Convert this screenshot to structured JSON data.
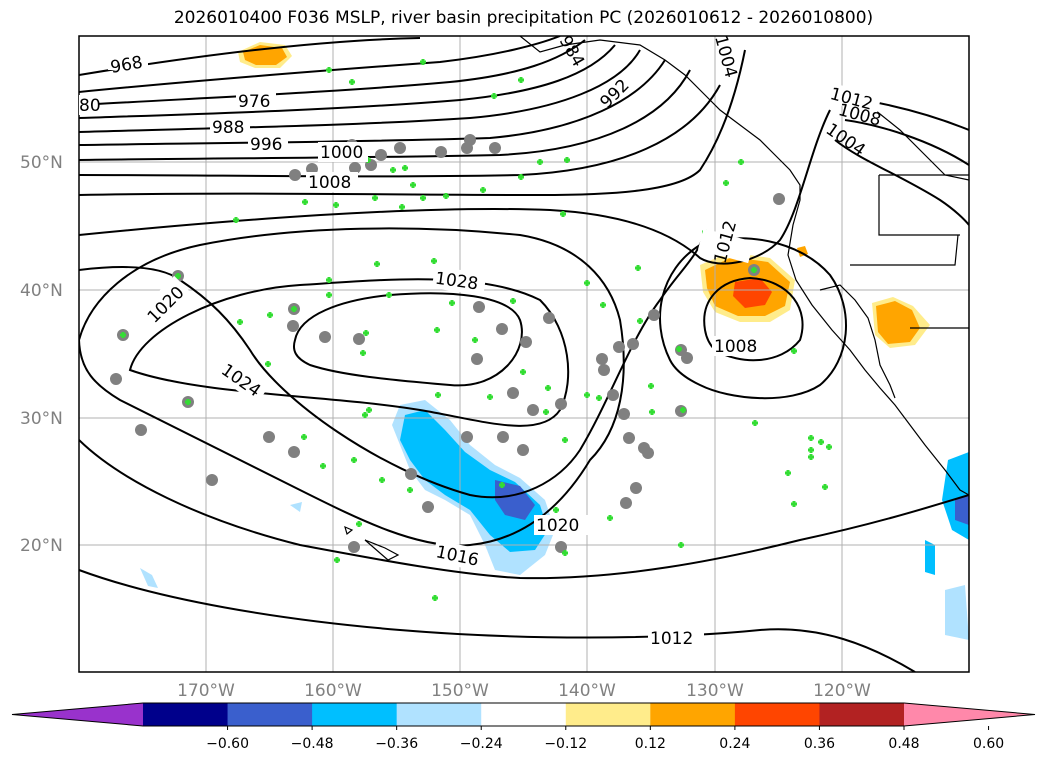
{
  "title": "2026010400 F036 MSLP, river basin precipitation PC (2026010612 - 2026010800)",
  "lat_labels": [
    "50°N",
    "40°N",
    "30°N",
    "20°N"
  ],
  "lon_labels": [
    "170°W",
    "160°W",
    "150°W",
    "140°W",
    "130°W",
    "120°W"
  ],
  "isobar_labels": [
    "968",
    "976",
    "988",
    "996",
    "1000",
    "1008",
    "984",
    "992",
    "1004",
    "1012",
    "1008",
    "1004",
    "1020",
    "1024",
    "1028",
    "1012",
    "1008",
    "1020",
    "1016",
    "1012",
    "80"
  ],
  "colorbar": {
    "ticks": [
      "−0.60",
      "−0.48",
      "−0.36",
      "−0.24",
      "−0.12",
      "0.12",
      "0.24",
      "0.36",
      "0.48",
      "0.60"
    ],
    "colors": [
      "#9932cc",
      "#00008b",
      "#3a5fcd",
      "#00bfff",
      "#b0e2ff",
      "#ffffff",
      "#ffec8b",
      "#ffa500",
      "#ff4500",
      "#b22222",
      "#ff88aa"
    ]
  },
  "colors": {
    "isobar": "#000000",
    "grid": "#b0b0b0",
    "station_marker": "#33dd33",
    "station_circle": "#808080"
  }
}
